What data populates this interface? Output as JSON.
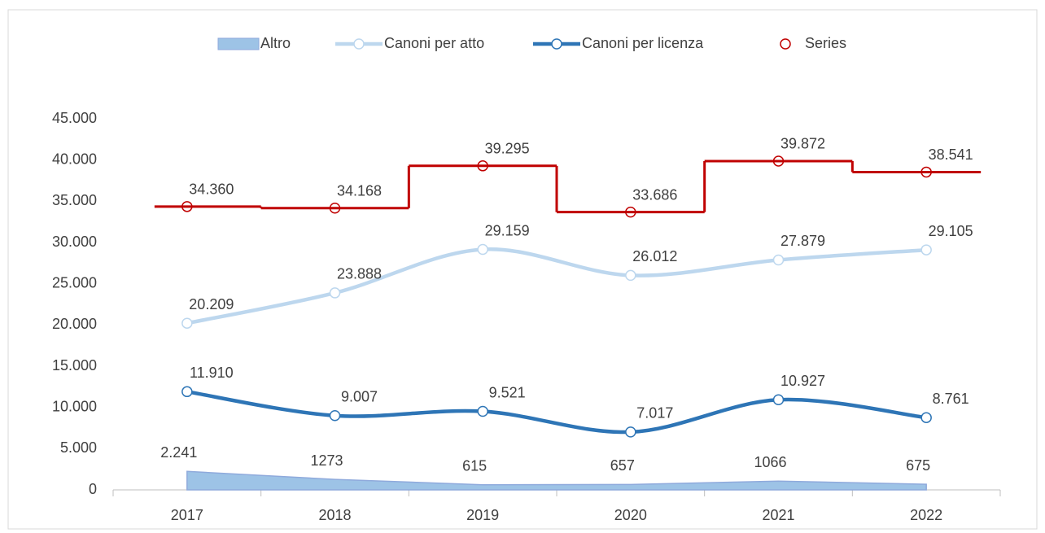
{
  "chart_data": {
    "type": "line",
    "categories": [
      "2017",
      "2018",
      "2019",
      "2020",
      "2021",
      "2022"
    ],
    "series": [
      {
        "name": "Altro",
        "style": "area",
        "color": "#9dc3e6",
        "values": [
          2241,
          1273,
          615,
          657,
          1066,
          675
        ],
        "value_labels": [
          "2.241",
          "1273",
          "615",
          "657",
          "1066",
          "675"
        ]
      },
      {
        "name": "Canoni per atto",
        "style": "smooth",
        "color": "#bdd7ee",
        "values": [
          20209,
          23888,
          29159,
          26012,
          27879,
          29105
        ],
        "value_labels": [
          "20.209",
          "23.888",
          "29.159",
          "26.012",
          "27.879",
          "29.105"
        ]
      },
      {
        "name": "Canoni per licenza",
        "style": "smooth",
        "color": "#2e75b6",
        "values": [
          11910,
          9007,
          9521,
          7017,
          10927,
          8761
        ],
        "value_labels": [
          "11.910",
          "9.007",
          "9.521",
          "7.017",
          "10.927",
          "8.761"
        ]
      },
      {
        "name": "Series",
        "style": "step",
        "color": "#c00000",
        "values": [
          34360,
          34168,
          39295,
          33686,
          39872,
          38541
        ],
        "value_labels": [
          "34.360",
          "34.168",
          "39.295",
          "33.686",
          "39.872",
          "38.541"
        ]
      }
    ],
    "ylim": [
      0,
      45000
    ],
    "yticks": [
      0,
      {
        "value": 5000,
        "label": "5.000"
      },
      {
        "value": 10000,
        "label": "10.000"
      },
      {
        "value": 15000,
        "label": "15.000"
      },
      {
        "value": 20000,
        "label": "20.000"
      },
      {
        "value": 25000,
        "label": "25.000"
      },
      {
        "value": 30000,
        "label": "30.000"
      },
      {
        "value": 35000,
        "label": "35.000"
      },
      {
        "value": 40000,
        "label": "40.000"
      },
      {
        "value": 45000,
        "label": "45.000"
      }
    ],
    "grid": false,
    "legend": "top"
  }
}
